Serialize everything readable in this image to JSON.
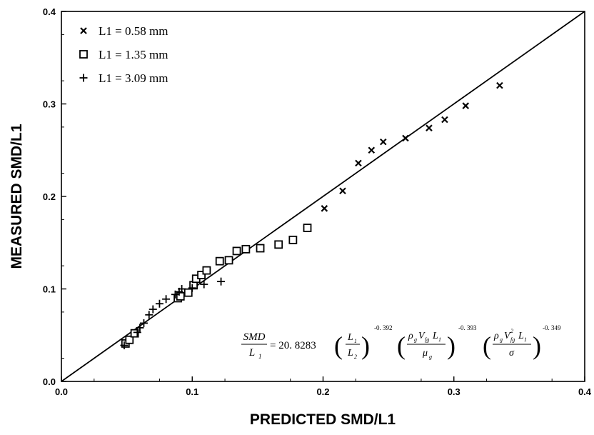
{
  "chart_data": {
    "type": "scatter",
    "xlabel": "PREDICTED SMD/L1",
    "ylabel": "MEASURED SMD/L1",
    "xlim": [
      0,
      0.4
    ],
    "ylim": [
      0,
      0.4
    ],
    "x_ticks": [
      "0.0",
      "0.1",
      "0.2",
      "0.3",
      "0.4"
    ],
    "y_ticks": [
      "0.0",
      "0.1",
      "0.2",
      "0.3",
      "0.4"
    ],
    "grid": false,
    "legend_position": "top-left",
    "reference_line": {
      "x": [
        0,
        0.4
      ],
      "y": [
        0,
        0.4
      ]
    },
    "series": [
      {
        "name": "L1 = 0.58 mm",
        "marker": "x",
        "points": [
          [
            0.201,
            0.187
          ],
          [
            0.215,
            0.206
          ],
          [
            0.227,
            0.236
          ],
          [
            0.237,
            0.25
          ],
          [
            0.246,
            0.259
          ],
          [
            0.263,
            0.263
          ],
          [
            0.281,
            0.274
          ],
          [
            0.293,
            0.283
          ],
          [
            0.309,
            0.298
          ],
          [
            0.335,
            0.32
          ]
        ]
      },
      {
        "name": "L1 = 1.35 mm",
        "marker": "square",
        "points": [
          [
            0.049,
            0.041
          ],
          [
            0.052,
            0.045
          ],
          [
            0.056,
            0.052
          ],
          [
            0.089,
            0.09
          ],
          [
            0.091,
            0.092
          ],
          [
            0.097,
            0.096
          ],
          [
            0.101,
            0.104
          ],
          [
            0.103,
            0.111
          ],
          [
            0.107,
            0.115
          ],
          [
            0.111,
            0.12
          ],
          [
            0.121,
            0.13
          ],
          [
            0.128,
            0.131
          ],
          [
            0.134,
            0.141
          ],
          [
            0.141,
            0.143
          ],
          [
            0.152,
            0.144
          ],
          [
            0.166,
            0.148
          ],
          [
            0.177,
            0.153
          ],
          [
            0.188,
            0.166
          ]
        ]
      },
      {
        "name": "L1 = 3.09 mm",
        "marker": "plus",
        "points": [
          [
            0.048,
            0.039
          ],
          [
            0.058,
            0.053
          ],
          [
            0.06,
            0.058
          ],
          [
            0.063,
            0.063
          ],
          [
            0.067,
            0.072
          ],
          [
            0.07,
            0.078
          ],
          [
            0.075,
            0.084
          ],
          [
            0.08,
            0.089
          ],
          [
            0.087,
            0.094
          ],
          [
            0.09,
            0.097
          ],
          [
            0.092,
            0.1
          ],
          [
            0.1,
            0.101
          ],
          [
            0.109,
            0.105
          ],
          [
            0.122,
            0.108
          ]
        ]
      }
    ],
    "annotation": {
      "lhs_num": "SMD",
      "lhs_den": "L",
      "lhs_den_sub": "1",
      "coef": "= 20. 8283",
      "t1_num": "L",
      "t1_num_sub": "1",
      "t1_den": "L",
      "t1_den_sub": "2",
      "t1_exp": "-0. 392",
      "t2_num_a": "ρ",
      "t2_num_a_sub": "g",
      "t2_num_b": "V",
      "t2_num_b_sub": "fg",
      "t2_num_c": "L",
      "t2_num_c_sub": "1",
      "t2_den": "μ",
      "t2_den_sub": "g",
      "t2_exp": "-0. 393",
      "t3_num_a": "ρ",
      "t3_num_a_sub": "g",
      "t3_num_b": "V",
      "t3_num_b_sub": "fg",
      "t3_num_b_sup": "2",
      "t3_num_c": "L",
      "t3_num_c_sub": "1",
      "t3_den": "σ",
      "t3_exp": "-0. 349"
    }
  }
}
